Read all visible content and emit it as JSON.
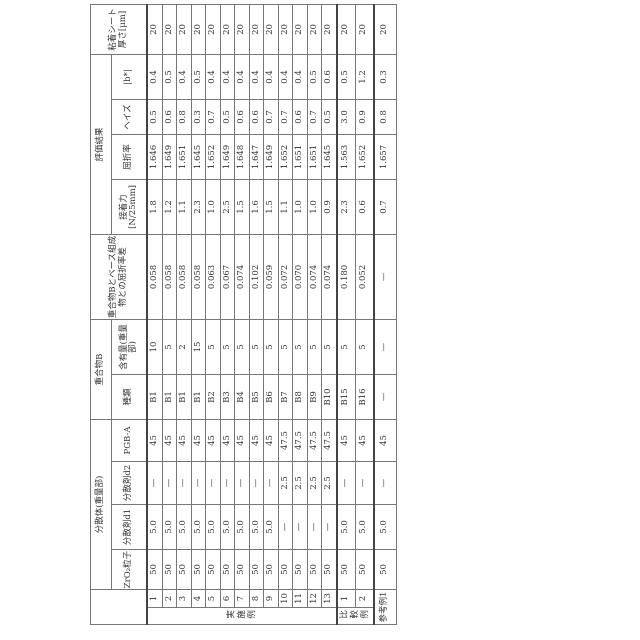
{
  "headers": {
    "dispersion_group": "分散体(重量部)",
    "zro2": "ZrO₂粒子",
    "d1": "分散剤d1",
    "d2": "分散剤d2",
    "pgba": "PGB-A",
    "polymer_group": "重合物B",
    "kind": "種類",
    "content": "含有量(重量部)",
    "ri_diff": "重合物Bとベース組成物との屈折率差",
    "eval_group": "評価結果",
    "adhesion": "接着力[N/25mm]",
    "ri": "屈折率",
    "haze": "ヘイズ",
    "b": "|b*|",
    "thickness": "粘着シート厚さ[μm]"
  },
  "groups": {
    "example": "実施例",
    "comparative": "比較例",
    "reference": "参考例1"
  },
  "examples": [
    [
      "1",
      "50",
      "5.0",
      "—",
      "45",
      "B1",
      "10",
      "0.058",
      "1.8",
      "1.646",
      "0.5",
      "0.4",
      "20"
    ],
    [
      "2",
      "50",
      "5.0",
      "—",
      "45",
      "B1",
      "5",
      "0.058",
      "1.2",
      "1.649",
      "0.6",
      "0.5",
      "20"
    ],
    [
      "3",
      "50",
      "5.0",
      "—",
      "45",
      "B1",
      "2",
      "0.058",
      "1.1",
      "1.651",
      "0.8",
      "0.4",
      "20"
    ],
    [
      "4",
      "50",
      "5.0",
      "—",
      "45",
      "B1",
      "15",
      "0.058",
      "2.3",
      "1.645",
      "0.3",
      "0.5",
      "20"
    ],
    [
      "5",
      "50",
      "5.0",
      "—",
      "45",
      "B2",
      "5",
      "0.063",
      "1.0",
      "1.652",
      "0.7",
      "0.4",
      "20"
    ],
    [
      "6",
      "50",
      "5.0",
      "—",
      "45",
      "B3",
      "5",
      "0.067",
      "2.5",
      "1.649",
      "0.5",
      "0.4",
      "20"
    ],
    [
      "7",
      "50",
      "5.0",
      "—",
      "45",
      "B4",
      "5",
      "0.074",
      "1.5",
      "1.648",
      "0.6",
      "0.4",
      "20"
    ],
    [
      "8",
      "50",
      "5.0",
      "—",
      "45",
      "B5",
      "5",
      "0.102",
      "1.6",
      "1.647",
      "0.6",
      "0.4",
      "20"
    ],
    [
      "9",
      "50",
      "5.0",
      "—",
      "45",
      "B6",
      "5",
      "0.059",
      "1.5",
      "1.649",
      "0.7",
      "0.4",
      "20"
    ],
    [
      "10",
      "50",
      "—",
      "2.5",
      "47.5",
      "B7",
      "5",
      "0.072",
      "1.1",
      "1.652",
      "0.7",
      "0.4",
      "20"
    ],
    [
      "11",
      "50",
      "—",
      "2.5",
      "47.5",
      "B8",
      "5",
      "0.070",
      "1.0",
      "1.651",
      "0.6",
      "0.4",
      "20"
    ],
    [
      "12",
      "50",
      "—",
      "2.5",
      "47.5",
      "B9",
      "5",
      "0.074",
      "1.0",
      "1.651",
      "0.7",
      "0.5",
      "20"
    ],
    [
      "13",
      "50",
      "—",
      "2.5",
      "47.5",
      "B10",
      "5",
      "0.074",
      "0.9",
      "1.645",
      "0.5",
      "0.6",
      "20"
    ]
  ],
  "comparatives": [
    [
      "1",
      "50",
      "5.0",
      "—",
      "45",
      "B15",
      "5",
      "0.180",
      "2.3",
      "1.563",
      "3.0",
      "0.5",
      "20"
    ],
    [
      "2",
      "50",
      "5.0",
      "—",
      "45",
      "B16",
      "5",
      "0.052",
      "0.6",
      "1.652",
      "0.9",
      "1.2",
      "20"
    ]
  ],
  "reference": [
    "50",
    "5.0",
    "—",
    "45",
    "—",
    "—",
    "—",
    "0.7",
    "1.657",
    "0.8",
    "0.3",
    "20"
  ]
}
